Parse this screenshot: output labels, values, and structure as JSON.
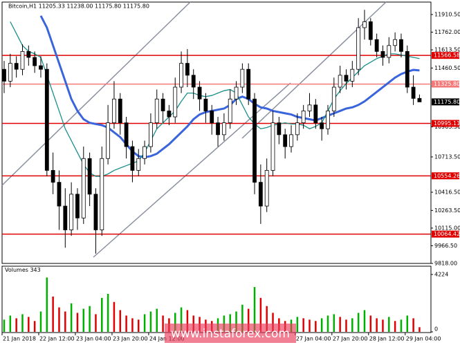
{
  "chart_data": {
    "type": "candlestick",
    "title": "Bitcoin,H1 11205.33 11238.00 11175.80 11175.80",
    "watermark": "www.instaforex.com",
    "categories": [
      "21 Jan 2018",
      null,
      null,
      null,
      null,
      null,
      "22 Jan 12:00",
      null,
      null,
      null,
      null,
      null,
      "23 Jan 04:00",
      null,
      null,
      null,
      null,
      null,
      "23 Jan 20:00",
      null,
      null,
      null,
      null,
      null,
      "24 Jan 12:00",
      null,
      null,
      null,
      null,
      null,
      null,
      null,
      null,
      null,
      null,
      null,
      null,
      null,
      null,
      null,
      null,
      null,
      null,
      null,
      null,
      null,
      null,
      null,
      "27 Jan 04:00",
      null,
      null,
      null,
      null,
      null,
      "27 Jan 20:00",
      null,
      null,
      null,
      null,
      null,
      "28 Jan 12:00",
      null,
      null,
      null,
      null,
      null,
      "29 Jan 04:00",
      null,
      null
    ],
    "open": [
      11450,
      11350,
      11500,
      11450,
      11600,
      11550,
      11480,
      11450,
      10600,
      10500,
      10300,
      10100,
      10400,
      10200,
      10700,
      10400,
      10100,
      10700,
      11000,
      11200,
      11000,
      10800,
      10600,
      10700,
      10800,
      11000,
      11200,
      11100,
      11050,
      11300,
      11500,
      11400,
      11300,
      11200,
      11100,
      11000,
      10900,
      11000,
      11200,
      11300,
      11450,
      11200,
      10500,
      10300,
      10600,
      11000,
      10900,
      10800,
      10900,
      11000,
      11100,
      11150,
      11000,
      10950,
      11100,
      11300,
      11400,
      11350,
      11450,
      11800,
      11850,
      11700,
      11600,
      11550,
      11650,
      11700,
      11600,
      11300,
      11205.33
    ],
    "high": [
      11520,
      11580,
      11560,
      11660,
      11650,
      11600,
      11560,
      11500,
      10750,
      10600,
      10450,
      10500,
      10450,
      10800,
      10750,
      10450,
      10800,
      11150,
      11350,
      11250,
      11050,
      10850,
      10780,
      10850,
      11080,
      11280,
      11250,
      11150,
      11380,
      11600,
      11620,
      11450,
      11350,
      11250,
      11150,
      11050,
      11080,
      11280,
      11350,
      11500,
      11500,
      11250,
      10650,
      10700,
      11100,
      11050,
      10950,
      10980,
      11080,
      11150,
      11250,
      11200,
      11050,
      11150,
      11380,
      11480,
      11450,
      11520,
      11880,
      11950,
      11880,
      11750,
      11650,
      11720,
      11760,
      11750,
      11650,
      11400,
      11238
    ],
    "low": [
      11250,
      11300,
      11380,
      11400,
      11480,
      11420,
      11380,
      10550,
      10400,
      10100,
      9950,
      10050,
      10100,
      10150,
      10300,
      9900,
      10050,
      10650,
      10950,
      10900,
      10700,
      10500,
      10550,
      10650,
      10750,
      10950,
      11000,
      10980,
      11000,
      11250,
      11300,
      11200,
      11100,
      11000,
      10900,
      10800,
      10850,
      10950,
      11150,
      11250,
      11150,
      10400,
      10150,
      10250,
      10550,
      10820,
      10700,
      10750,
      10850,
      10950,
      11050,
      10950,
      10850,
      10900,
      11050,
      11250,
      11280,
      11300,
      11400,
      11700,
      11650,
      11550,
      11480,
      11500,
      11600,
      11550,
      11250,
      11150,
      11175.8
    ],
    "close": [
      11350,
      11500,
      11450,
      11600,
      11550,
      11480,
      11450,
      10600,
      10500,
      10300,
      10100,
      10400,
      10200,
      10700,
      10400,
      10100,
      10700,
      11000,
      11200,
      11000,
      10800,
      10600,
      10700,
      10800,
      11000,
      11200,
      11100,
      11050,
      11300,
      11500,
      11400,
      11300,
      11200,
      11100,
      11000,
      10900,
      11000,
      11200,
      11300,
      11450,
      11200,
      10500,
      10300,
      10600,
      11000,
      10900,
      10800,
      10900,
      11000,
      11100,
      11150,
      11000,
      10950,
      11100,
      11300,
      11400,
      11350,
      11450,
      11800,
      11850,
      11700,
      11600,
      11550,
      11650,
      11700,
      11600,
      11300,
      11205.33,
      11175.8
    ],
    "series": [
      {
        "color": "#3a64dc",
        "values": [
          null,
          null,
          null,
          null,
          null,
          null,
          11900,
          11800,
          11650,
          11500,
          11350,
          11200,
          11100,
          11030,
          11000,
          10990,
          10980,
          10960,
          10920,
          10880,
          10820,
          10760,
          10720,
          10710,
          10720,
          10740,
          10780,
          10820,
          10870,
          10920,
          10970,
          11030,
          11070,
          11090,
          11100,
          11110,
          11120,
          11150,
          11200,
          11220,
          11200,
          11160,
          11130,
          11120,
          11100,
          11090,
          11080,
          11070,
          11050,
          11040,
          11030,
          11020,
          11040,
          11060,
          11080,
          11100,
          11120,
          11130,
          11150,
          11180,
          11220,
          11260,
          11300,
          11340,
          11380,
          11410,
          11430,
          11445,
          11440
        ]
      },
      {
        "color": "#1a8f8a",
        "values": [
          null,
          11850,
          11750,
          11650,
          11600,
          11580,
          11550,
          11400,
          11250,
          11100,
          10950,
          10850,
          10750,
          10650,
          10580,
          10550,
          10550,
          10570,
          10600,
          10620,
          10640,
          10660,
          10680,
          10750,
          10850,
          10950,
          11000,
          11050,
          11100,
          11180,
          11250,
          11250,
          11230,
          11220,
          11230,
          11250,
          11270,
          11280,
          11250,
          11150,
          11050,
          10990,
          10950,
          10960,
          10980,
          10990,
          11000,
          10990,
          10990,
          10980,
          10950,
          10970,
          11000,
          11100,
          11200,
          11270,
          11330,
          11380,
          11430,
          11480,
          11510,
          11540,
          11560,
          11580,
          11580,
          11570,
          11560,
          11550,
          11540
        ]
      }
    ],
    "ylim": [
      9818,
      12015
    ],
    "yticks": [
      {
        "value": 11910.5,
        "label": "11910.50"
      },
      {
        "value": 11762,
        "label": "11762.00"
      },
      {
        "value": 11613.5,
        "label": "11613.50"
      },
      {
        "value": 11460.5,
        "label": "11460.50"
      },
      {
        "value": 10965.5,
        "label": "10965.50"
      },
      {
        "value": 10713.5,
        "label": "10713.50"
      },
      {
        "value": 10416.5,
        "label": "10416.50"
      },
      {
        "value": 10263.5,
        "label": "10263.50"
      },
      {
        "value": 10115,
        "label": "10115.00"
      },
      {
        "value": 9966.5,
        "label": "9966.50"
      },
      {
        "value": 9818,
        "label": "9818.00"
      }
    ],
    "levels": [
      {
        "value": 11566.58,
        "label": "11566.58",
        "color": "#e00000"
      },
      {
        "value": 11325.8,
        "label": "11325.80",
        "color": "#f47a7a"
      },
      {
        "value": 10995.11,
        "label": "10995.11",
        "color": "#e00000"
      },
      {
        "value": 10554.26,
        "label": "10554.26",
        "color": "#e00000"
      },
      {
        "value": 10064.42,
        "label": "10064.42",
        "color": "#e00000"
      }
    ],
    "last_price": {
      "value": 11175.8,
      "label": "11175.80"
    },
    "volume_label": "Volumes",
    "volumes": [
      900,
      1200,
      1000,
      1300,
      1100,
      800,
      1500,
      4000,
      2600,
      1800,
      1500,
      2100,
      1400,
      1700,
      1900,
      1300,
      2500,
      2800,
      2200,
      1600,
      1200,
      1000,
      900,
      1300,
      1500,
      1700,
      1200,
      1000,
      1400,
      1800,
      1600,
      1200,
      1100,
      900,
      800,
      1000,
      1200,
      1300,
      1500,
      2000,
      1700,
      3300,
      2500,
      1900,
      1400,
      1000,
      800,
      900,
      1100,
      1000,
      900,
      800,
      1000,
      1200,
      1300,
      1100,
      900,
      1000,
      1400,
      1600,
      1200,
      1000,
      900,
      1100,
      800,
      900,
      1200,
      1000,
      343
    ],
    "vlim": [
      0,
      4224
    ],
    "vticks": [
      0,
      4224
    ]
  }
}
